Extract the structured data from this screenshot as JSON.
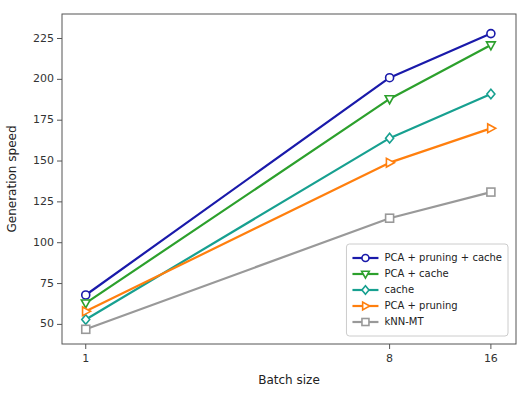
{
  "chart_data": {
    "type": "line",
    "x": [
      1,
      8,
      16
    ],
    "xlabel": "Batch size",
    "ylabel": "Generation speed",
    "log": "x",
    "xlim": [
      0.85,
      19
    ],
    "ylim": [
      38,
      240
    ],
    "xticks": [
      1,
      8,
      16
    ],
    "yticks": [
      50,
      75,
      100,
      125,
      150,
      175,
      200,
      225
    ],
    "grid": false,
    "legend": "lower right",
    "series": [
      {
        "name": "PCA + pruning + cache",
        "color": "#1a1aaa",
        "marker": "circle",
        "values": [
          68,
          201,
          228
        ]
      },
      {
        "name": "PCA + cache",
        "color": "#2ca02c",
        "marker": "triangle-down",
        "values": [
          63,
          188,
          221
        ]
      },
      {
        "name": "cache",
        "color": "#17a090",
        "marker": "diamond",
        "values": [
          53,
          164,
          191
        ]
      },
      {
        "name": "PCA + pruning",
        "color": "#ff7f0e",
        "marker": "triangle-right",
        "values": [
          58,
          149,
          170
        ]
      },
      {
        "name": "kNN-MT",
        "color": "#999999",
        "marker": "square",
        "values": [
          47,
          115,
          131
        ]
      }
    ]
  }
}
